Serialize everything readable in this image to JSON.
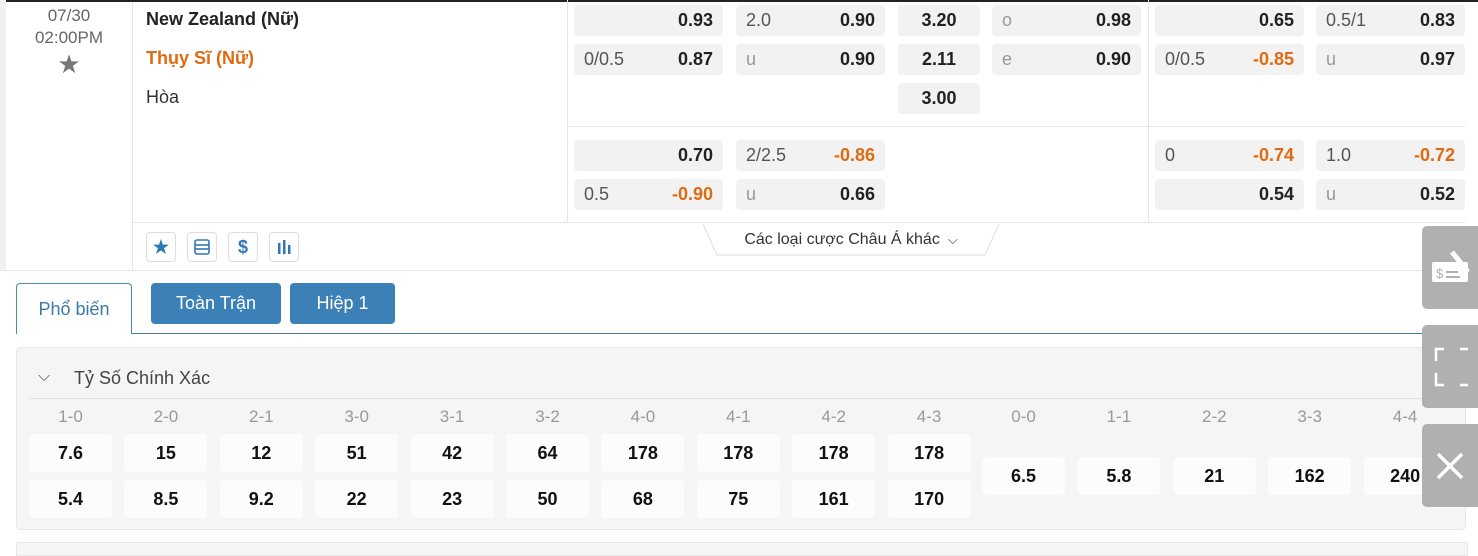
{
  "match": {
    "date": "07/30",
    "time": "02:00PM",
    "home": "New Zealand (Nữ)",
    "away": "Thụy Sĩ (Nữ)",
    "draw": "Hòa"
  },
  "odds": {
    "ft_main": {
      "handicap": [
        {
          "line": "",
          "value": "0.93"
        },
        {
          "line": "0/0.5",
          "value": "0.87"
        }
      ],
      "over_under": [
        {
          "line": "2.0",
          "value": "0.90"
        },
        {
          "line": "u",
          "value": "0.90"
        }
      ],
      "one_x_two": [
        "3.20",
        "2.11",
        "3.00"
      ],
      "odd_even": [
        {
          "line": "o",
          "value": "0.98"
        },
        {
          "line": "e",
          "value": "0.90"
        }
      ]
    },
    "h1_main": {
      "handicap": [
        {
          "line": "",
          "value": "0.65"
        },
        {
          "line": "0/0.5",
          "value": "-0.85"
        }
      ],
      "over_under": [
        {
          "line": "0.5/1",
          "value": "0.83"
        },
        {
          "line": "u",
          "value": "0.97"
        }
      ]
    },
    "ft_alt": {
      "handicap": [
        {
          "line": "",
          "value": "0.70"
        },
        {
          "line": "0.5",
          "value": "-0.90"
        }
      ],
      "over_under": [
        {
          "line": "2/2.5",
          "value": "-0.86"
        },
        {
          "line": "u",
          "value": "0.66"
        }
      ]
    },
    "h1_alt": {
      "handicap": [
        {
          "line": "0",
          "value": "-0.74"
        },
        {
          "line": "",
          "value": "0.54"
        }
      ],
      "over_under": [
        {
          "line": "1.0",
          "value": "-0.72"
        },
        {
          "line": "u",
          "value": "0.52"
        }
      ]
    }
  },
  "actions": {
    "icons": [
      "star-icon",
      "ticket-icon",
      "dollar-icon",
      "stats-icon"
    ],
    "more_label": "Các loại cược Châu Á khác"
  },
  "tabs": [
    {
      "label": "Phổ biến",
      "active": true
    },
    {
      "label": "Toàn Trận",
      "active": false
    },
    {
      "label": "Hiệp 1",
      "active": false
    }
  ],
  "correct_score": {
    "title": "Tỷ Số Chính Xác",
    "columns": [
      {
        "label": "1-0",
        "home": "7.6",
        "away": "5.4"
      },
      {
        "label": "2-0",
        "home": "15",
        "away": "8.5"
      },
      {
        "label": "2-1",
        "home": "12",
        "away": "9.2"
      },
      {
        "label": "3-0",
        "home": "51",
        "away": "22"
      },
      {
        "label": "3-1",
        "home": "42",
        "away": "23"
      },
      {
        "label": "3-2",
        "home": "64",
        "away": "50"
      },
      {
        "label": "4-0",
        "home": "178",
        "away": "68"
      },
      {
        "label": "4-1",
        "home": "178",
        "away": "75"
      },
      {
        "label": "4-2",
        "home": "178",
        "away": "161"
      },
      {
        "label": "4-3",
        "home": "178",
        "away": "170"
      }
    ],
    "draws": [
      {
        "label": "0-0",
        "value": "6.5"
      },
      {
        "label": "1-1",
        "value": "5.8"
      },
      {
        "label": "2-2",
        "value": "21"
      },
      {
        "label": "3-3",
        "value": "162"
      },
      {
        "label": "4-4",
        "value": "240"
      }
    ]
  },
  "side_buttons": [
    "bet-slip-icon",
    "fullscreen-icon",
    "close-icon"
  ],
  "colors": {
    "accent": "#3b80b6",
    "negative": "#e06a10",
    "away_team": "#e06a10"
  }
}
